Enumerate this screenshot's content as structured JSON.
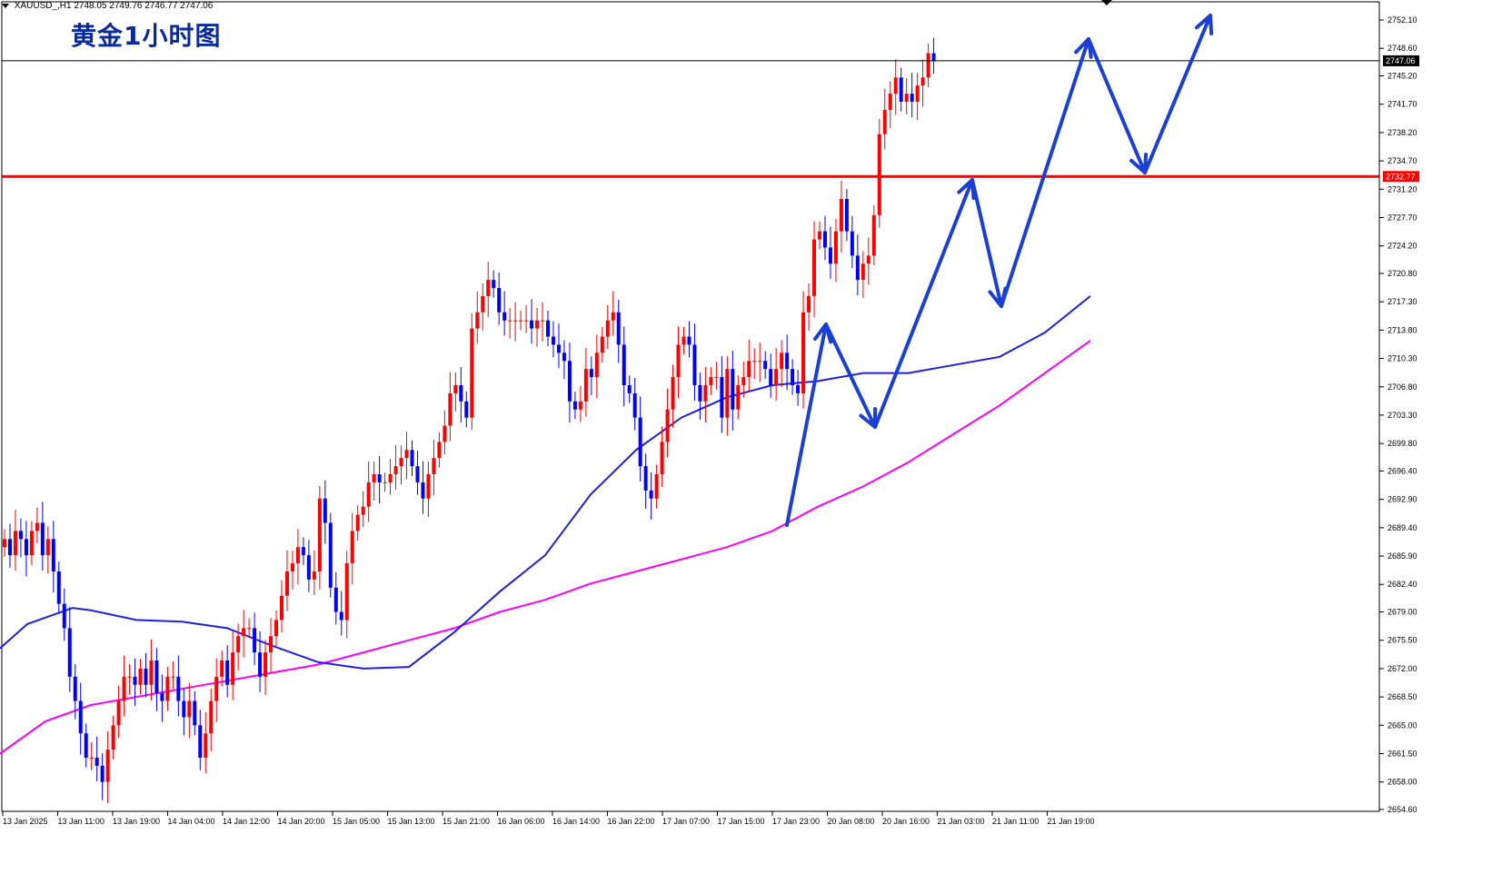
{
  "header": {
    "symbol": "XAUUSD_,H1",
    "ohlc": "2748.05 2749.76 2746.77 2747.06"
  },
  "title": "黄金1小时图",
  "colors": {
    "bull": "#ff0000",
    "bear": "#0000ff",
    "ma_fast": "#1f1fdd",
    "ma_slow": "#ff00ff",
    "level": "#ff0000",
    "arrows": "#1a3fd6"
  },
  "chart_data": {
    "type": "candlestick",
    "ylim": [
      2654.6,
      2754.8
    ],
    "y_ticks": [
      "2752.10",
      "2748.60",
      "2745.20",
      "2741.70",
      "2738.20",
      "2734.70",
      "2731.20",
      "2727.70",
      "2724.20",
      "2720.80",
      "2717.30",
      "2713.80",
      "2710.30",
      "2706.80",
      "2703.30",
      "2699.80",
      "2696.40",
      "2692.90",
      "2689.40",
      "2685.90",
      "2682.40",
      "2679.00",
      "2675.50",
      "2672.00",
      "2668.50",
      "2665.00",
      "2661.50",
      "2658.00",
      "2654.60"
    ],
    "x_ticks": [
      "13 Jan 2025",
      "13 Jan 11:00",
      "13 Jan 19:00",
      "14 Jan 04:00",
      "14 Jan 12:00",
      "14 Jan 20:00",
      "15 Jan 05:00",
      "15 Jan 13:00",
      "15 Jan 21:00",
      "16 Jan 06:00",
      "16 Jan 14:00",
      "16 Jan 22:00",
      "17 Jan 07:00",
      "17 Jan 15:00",
      "17 Jan 23:00",
      "20 Jan 08:00",
      "20 Jan 16:00",
      "21 Jan 03:00",
      "21 Jan 11:00",
      "21 Jan 19:00"
    ],
    "current_price": "2747.06",
    "resistance_level": "2732.77",
    "candle_closes": [
      2688,
      2686,
      2689,
      2688,
      2686,
      2689,
      2690,
      2686,
      2688,
      2684,
      2680,
      2677,
      2671,
      2668,
      2664,
      2661,
      2661,
      2660,
      2658,
      2662,
      2665,
      2668,
      2671,
      2671,
      2670,
      2672,
      2670,
      2673,
      2669,
      2668,
      2671,
      2671,
      2668,
      2666,
      2668,
      2665,
      2661,
      2664,
      2668,
      2671,
      2673,
      2670,
      2674,
      2676,
      2677,
      2677,
      2674,
      2671,
      2674,
      2676,
      2678,
      2681,
      2684,
      2685,
      2687,
      2686,
      2683,
      2684,
      2693,
      2690,
      2682,
      2679,
      2678,
      2685,
      2689,
      2691,
      2692,
      2695,
      2696,
      2695,
      2695,
      2696,
      2697,
      2698,
      2699,
      2697,
      2695,
      2693,
      2696,
      2698,
      2700,
      2702,
      2706,
      2707,
      2705,
      2703,
      2714,
      2716,
      2718,
      2720,
      2719,
      2716,
      2715,
      2715,
      2715,
      2715,
      2715,
      2714,
      2715,
      2715,
      2713,
      2712,
      2711,
      2710,
      2705,
      2704,
      2705,
      2709,
      2708,
      2711,
      2713,
      2715,
      2716,
      2712,
      2707,
      2706,
      2703,
      2697,
      2694,
      2693,
      2696,
      2700,
      2704,
      2708,
      2712,
      2713,
      2712,
      2707,
      2705,
      2707,
      2708,
      2708,
      2703,
      2709,
      2704,
      2707,
      2708,
      2710,
      2710,
      2710,
      2709,
      2707,
      2709,
      2711,
      2709,
      2707,
      2706,
      2716,
      2718,
      2725,
      2726,
      2724,
      2722,
      2726,
      2730,
      2726,
      2723,
      2720,
      2722,
      2723,
      2728,
      2738,
      2741,
      2743,
      2745,
      2742,
      2743,
      2742,
      2744,
      2745,
      2748,
      2747
    ],
    "ma_fast": [
      [
        0,
        2674.5
      ],
      [
        30,
        2677.5
      ],
      [
        80,
        2679.5
      ],
      [
        100,
        2679.2
      ],
      [
        150,
        2678.0
      ],
      [
        200,
        2677.8
      ],
      [
        250,
        2677.0
      ],
      [
        300,
        2674.8
      ],
      [
        350,
        2672.8
      ],
      [
        400,
        2672.0
      ],
      [
        450,
        2672.2
      ],
      [
        500,
        2676.5
      ],
      [
        550,
        2681.5
      ],
      [
        600,
        2686.0
      ],
      [
        650,
        2693.5
      ],
      [
        700,
        2699.0
      ],
      [
        750,
        2703.0
      ],
      [
        800,
        2705.5
      ],
      [
        850,
        2707.0
      ],
      [
        900,
        2707.5
      ],
      [
        950,
        2708.5
      ],
      [
        1000,
        2708.5
      ],
      [
        1050,
        2709.5
      ],
      [
        1100,
        2710.5
      ],
      [
        1150,
        2713.5
      ],
      [
        1200,
        2718.0
      ]
    ],
    "ma_slow": [
      [
        0,
        2661.5
      ],
      [
        50,
        2665.5
      ],
      [
        100,
        2667.5
      ],
      [
        150,
        2668.5
      ],
      [
        200,
        2669.5
      ],
      [
        250,
        2670.5
      ],
      [
        300,
        2671.5
      ],
      [
        350,
        2672.5
      ],
      [
        400,
        2674.0
      ],
      [
        450,
        2675.5
      ],
      [
        500,
        2677.0
      ],
      [
        550,
        2679.0
      ],
      [
        600,
        2680.5
      ],
      [
        650,
        2682.5
      ],
      [
        700,
        2684.0
      ],
      [
        750,
        2685.5
      ],
      [
        800,
        2687.0
      ],
      [
        850,
        2689.0
      ],
      [
        900,
        2692.0
      ],
      [
        950,
        2694.5
      ],
      [
        1000,
        2697.5
      ],
      [
        1050,
        2701.0
      ],
      [
        1100,
        2704.5
      ],
      [
        1150,
        2708.5
      ],
      [
        1200,
        2712.5
      ]
    ]
  }
}
